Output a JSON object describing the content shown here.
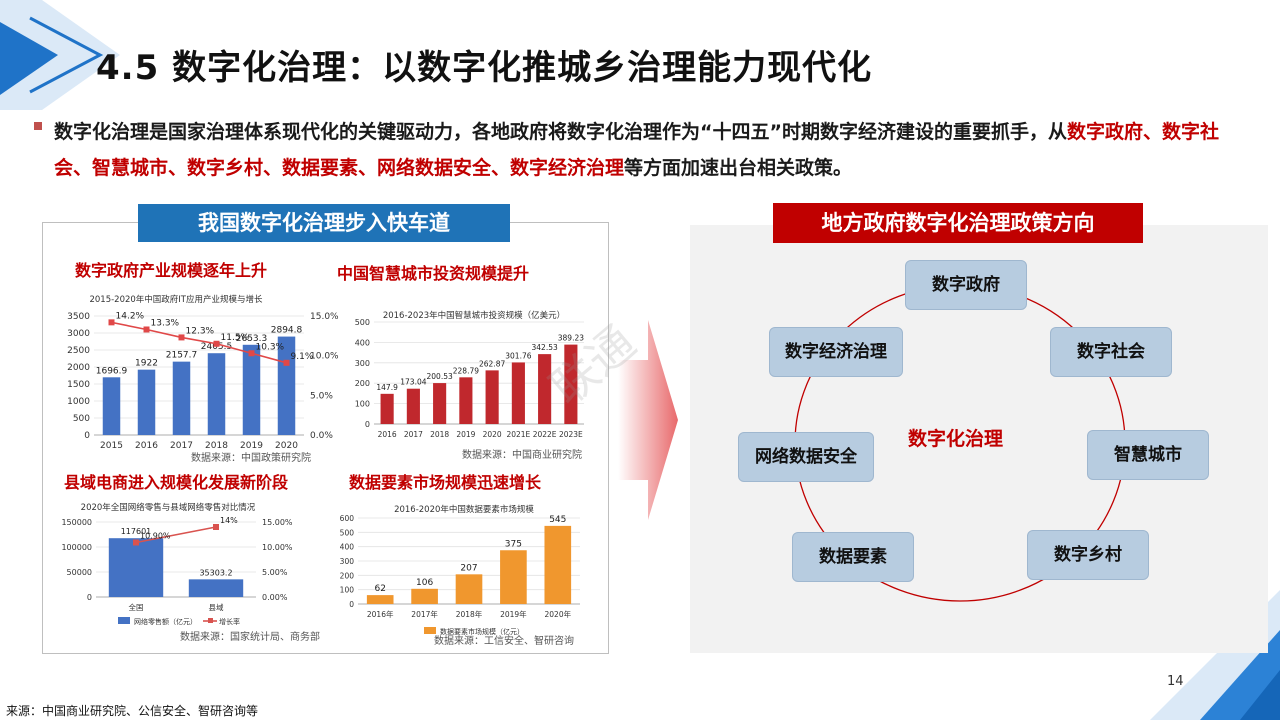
{
  "title": "4.5 数字化治理：以数字化推城乡治理能力现代化",
  "intro": {
    "text_before": "数字化治理是国家治理体系现代化的关键驱动力，各地政府将数字化治理作为“十四五”时期数字经济建设的重要抓手，从",
    "highlight": "数字政府、数字社会、智慧城市、数字乡村、数据要素、网络数据安全、数字经济治理",
    "text_after": "等方面加速出台相关政策。"
  },
  "left_banner": "我国数字化治理步入快车道",
  "right_banner": "地方政府数字化治理政策方向",
  "subtitles": {
    "gov": "数字政府产业规模逐年上升",
    "city": "中国智慧城市投资规模提升",
    "county": "县域电商进入规模化发展新阶段",
    "data": "数据要素市场规模迅速增长"
  },
  "chart_data": [
    {
      "type": "bar",
      "title": "2015-2020年中国政府IT应用产业规模与增长",
      "categories": [
        "2015",
        "2016",
        "2017",
        "2018",
        "2019",
        "2020"
      ],
      "series": [
        {
          "values": [
            1696.9,
            1922,
            2157.7,
            2405.5,
            2653.3,
            2894.8
          ]
        },
        {
          "type": "line",
          "values": [
            14.2,
            13.3,
            12.3,
            11.5,
            10.3,
            9.1
          ]
        }
      ],
      "value_labels": [
        "1696.9",
        "1922",
        "2157.7",
        "2405.5",
        "2653.3",
        "2894.8"
      ],
      "rate_labels": [
        "14.2%",
        "13.3%",
        "12.3%",
        "11.5%",
        "10.3%",
        "9.1%"
      ],
      "ylim": [
        0,
        3500
      ],
      "yticks": [
        "0",
        "500",
        "1000",
        "1500",
        "2000",
        "2500",
        "3000",
        "3500"
      ],
      "y2lim": [
        0,
        15
      ],
      "y2ticks": [
        "0.0%",
        "5.0%",
        "10.0%",
        "15.0%"
      ],
      "source": "数据来源：中国政策研究院",
      "colors": {
        "bar": "#4472c4",
        "line": "#e04848"
      }
    },
    {
      "type": "bar",
      "title": "2016-2023年中国智慧城市投资规模（亿美元）",
      "categories": [
        "2016",
        "2017",
        "2018",
        "2019",
        "2020",
        "2021E",
        "2022E",
        "2023E"
      ],
      "values": [
        147.9,
        173.04,
        200.53,
        228.79,
        262.87,
        301.76,
        342.53,
        389.23
      ],
      "value_labels": [
        "147.9",
        "173.04",
        "200.53",
        "228.79",
        "262.87",
        "301.76",
        "342.53",
        "389.23"
      ],
      "ylim": [
        0,
        500
      ],
      "yticks": [
        "0",
        "100",
        "200",
        "300",
        "400",
        "500"
      ],
      "source": "数据来源：中国商业研究院",
      "colors": {
        "bar": "#c0282d"
      }
    },
    {
      "type": "bar",
      "title": "2020年全国网络零售与县域网络零售对比情况",
      "categories": [
        "全国",
        "县域"
      ],
      "series": [
        {
          "name": "网络零售额（亿元）",
          "values": [
            117601,
            35303.2
          ]
        },
        {
          "name": "增长率",
          "type": "line",
          "values": [
            10.9,
            14
          ]
        }
      ],
      "value_labels": [
        "117601",
        "35303.2"
      ],
      "rate_labels": [
        "10.90%",
        "14%"
      ],
      "ylim": [
        0,
        150000
      ],
      "yticks": [
        "0",
        "50000",
        "100000",
        "150000"
      ],
      "y2lim": [
        0,
        15
      ],
      "y2ticks": [
        "0.00%",
        "5.00%",
        "10.00%",
        "15.00%"
      ],
      "source": "数据来源：国家统计局、商务部",
      "colors": {
        "bar": "#4472c4",
        "line": "#d9534f"
      }
    },
    {
      "type": "bar",
      "title": "2016-2020年中国数据要素市场规模",
      "categories": [
        "2016年",
        "2017年",
        "2018年",
        "2019年",
        "2020年"
      ],
      "series": [
        {
          "name": "数据要素市场规模（亿元）",
          "values": [
            62,
            106,
            207,
            375,
            545
          ]
        }
      ],
      "value_labels": [
        "62",
        "106",
        "207",
        "375",
        "545"
      ],
      "ylim": [
        0,
        600
      ],
      "yticks": [
        "0",
        "100",
        "200",
        "300",
        "400",
        "500",
        "600"
      ],
      "source": "数据来源：工信安全、智研咨询",
      "colors": {
        "bar": "#f0972e"
      }
    }
  ],
  "cycle": {
    "center": "数字化治理",
    "nodes": [
      "数字政府",
      "数字社会",
      "智慧城市",
      "数字乡村",
      "数据要素",
      "网络数据安全",
      "数字经济治理"
    ]
  },
  "watermark": "联通",
  "footer_source": "来源：中国商业研究院、公信安全、智研咨询等",
  "page_number": "14",
  "colors": {
    "accent_red": "#c00000",
    "accent_blue": "#1f73b7",
    "node_fill": "#b7cce0"
  }
}
